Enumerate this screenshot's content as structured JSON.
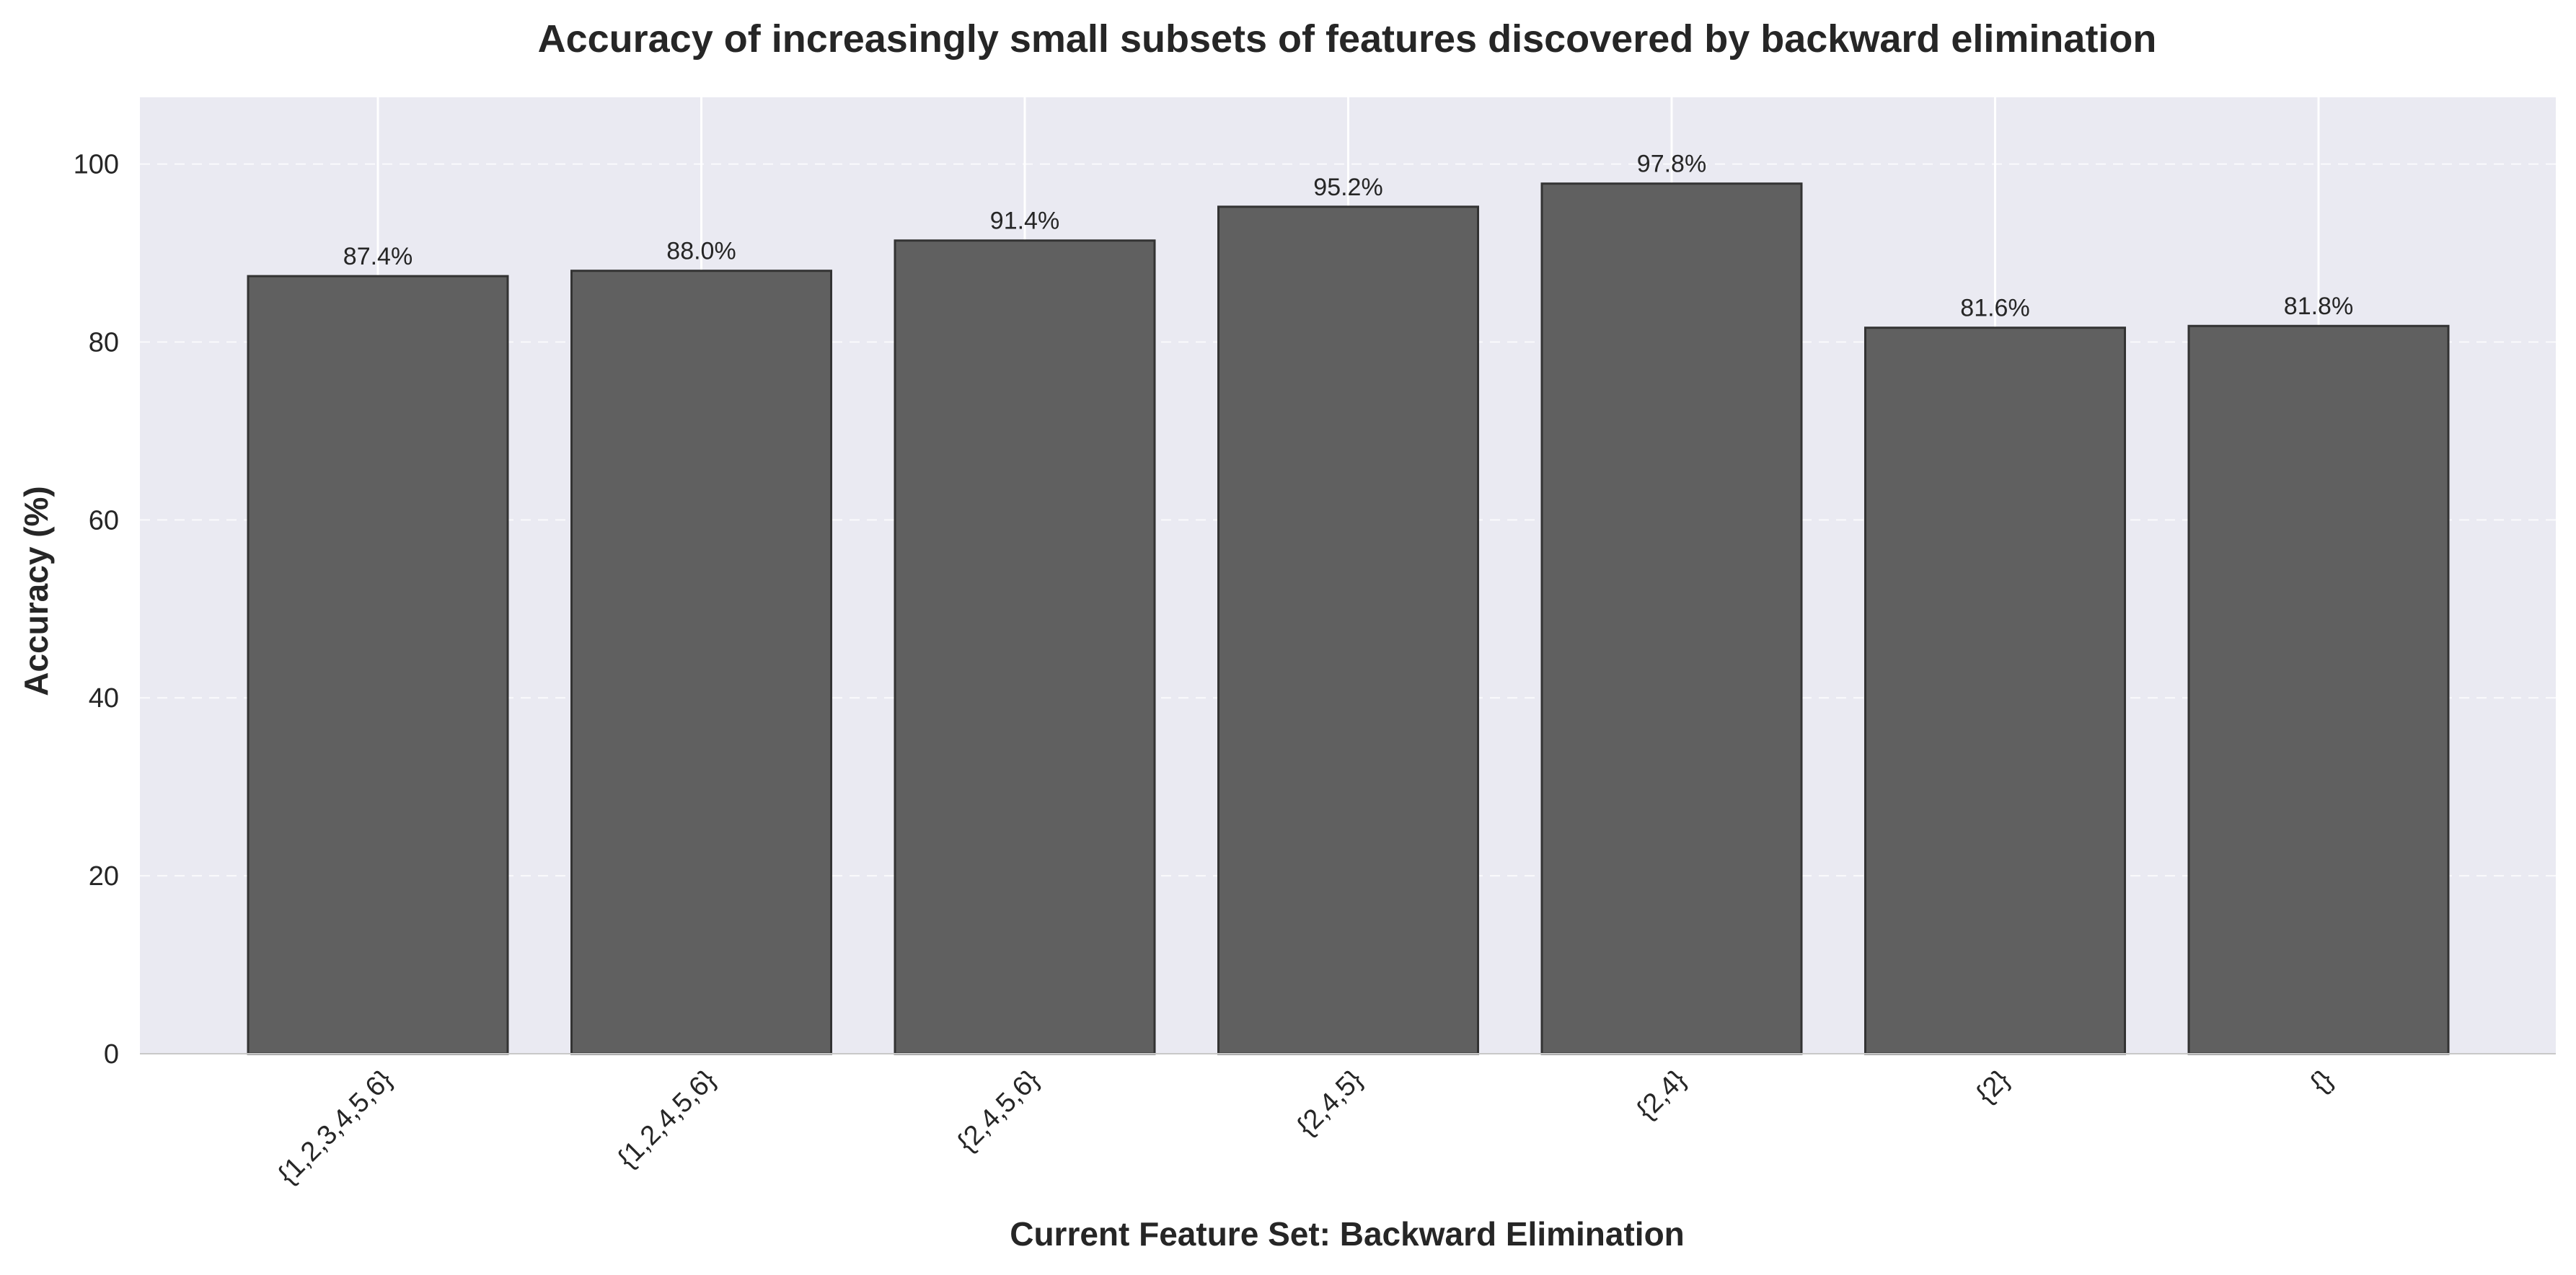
{
  "chart_data": {
    "type": "bar",
    "title": "Accuracy of increasingly small subsets of features discovered by backward elimination",
    "xlabel": "Current Feature Set: Backward Elimination",
    "ylabel": "Accuracy (%)",
    "categories": [
      "{1,2,3,4,5,6}",
      "{1,2,4,5,6}",
      "{2,4,5,6}",
      "{2,4,5}",
      "{2,4}",
      "{2}",
      "{}"
    ],
    "values": [
      87.4,
      88.0,
      91.4,
      95.2,
      97.8,
      81.6,
      81.8
    ],
    "value_labels": [
      "87.4%",
      "88.0%",
      "91.4%",
      "95.2%",
      "97.8%",
      "81.6%",
      "81.8%"
    ],
    "ylim": [
      0,
      107.5
    ],
    "yticks": [
      0,
      20,
      40,
      60,
      80,
      100
    ],
    "ytick_labels": [
      "0",
      "20",
      "40",
      "60",
      "80",
      "100"
    ],
    "grid": true,
    "colors": {
      "bar_fill": "#606060",
      "bar_edge": "#333333",
      "plot_background": "#eaeaf2",
      "grid": "#ffffff",
      "text": "#262626"
    }
  }
}
